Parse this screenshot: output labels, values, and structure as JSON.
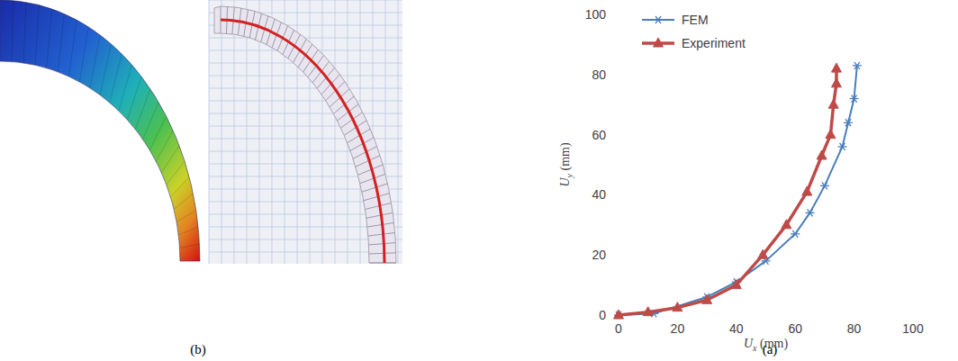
{
  "chart_data": {
    "type": "line",
    "x_label": "Ux (mm)",
    "y_label": "Uy (mm)",
    "xlim": [
      0,
      100
    ],
    "ylim": [
      0,
      100
    ],
    "xticks": [
      0,
      20,
      40,
      60,
      80,
      100
    ],
    "yticks": [
      0,
      20,
      40,
      60,
      80,
      100
    ],
    "grid": false,
    "legend": "upper left",
    "series": [
      {
        "name": "FEM",
        "color": "#4a7ebb",
        "marker": "asterisk",
        "line_style": "solid",
        "x": [
          0,
          12,
          30,
          40,
          50,
          60,
          65,
          70,
          76,
          78,
          80,
          81
        ],
        "values": [
          0,
          0.5,
          6,
          11,
          18,
          27,
          34,
          43,
          56,
          64,
          72,
          83
        ]
      },
      {
        "name": "Experiment",
        "color": "#be4b48",
        "marker": "triangle",
        "line_style": "solid",
        "x": [
          0,
          10,
          20,
          30,
          40,
          49,
          57,
          64,
          69,
          72,
          73,
          74,
          74
        ],
        "values": [
          0,
          1,
          2.5,
          5,
          10,
          20,
          30,
          41,
          53,
          60,
          70,
          77,
          82
        ]
      }
    ]
  },
  "panels": {
    "left_label": "(b)",
    "right_label": "(a)"
  }
}
